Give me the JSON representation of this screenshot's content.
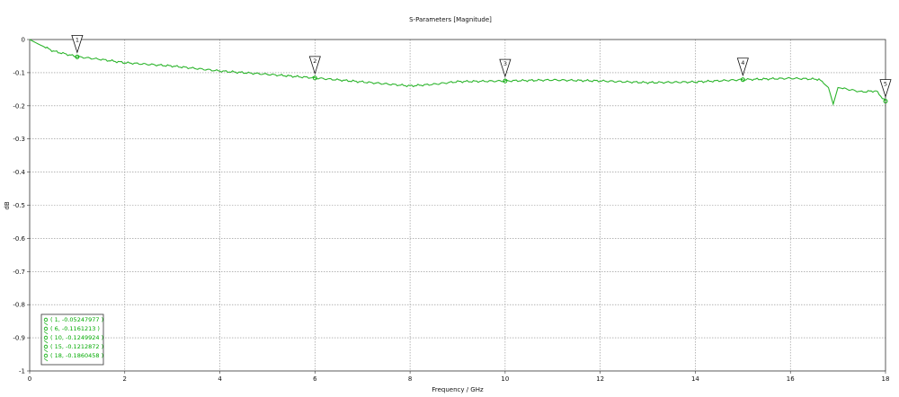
{
  "chart_data": {
    "type": "line",
    "title": "S-Parameters [Magnitude]",
    "xlabel": "Frequency / GHz",
    "ylabel": "dB",
    "xlim": [
      0,
      18
    ],
    "ylim": [
      -1,
      0
    ],
    "x_ticks": [
      0,
      2,
      4,
      6,
      8,
      10,
      12,
      14,
      16,
      18
    ],
    "y_ticks": [
      0,
      -0.1,
      -0.2,
      -0.3,
      -0.4,
      -0.5,
      -0.6,
      -0.7,
      -0.8,
      -0.9,
      -1
    ],
    "grid": true,
    "series": [
      {
        "color": "#2db52d",
        "x": [
          0,
          0.2,
          0.5,
          1,
          1.5,
          2,
          3,
          4,
          5,
          6,
          7,
          8,
          8.5,
          9,
          10,
          11,
          12,
          13,
          14,
          15,
          16,
          16.6,
          16.8,
          16.9,
          17.0,
          17.2,
          17.5,
          17.8,
          18
        ],
        "y": [
          0,
          -0.015,
          -0.035,
          -0.052,
          -0.06,
          -0.07,
          -0.08,
          -0.095,
          -0.105,
          -0.116,
          -0.128,
          -0.14,
          -0.135,
          -0.127,
          -0.125,
          -0.122,
          -0.125,
          -0.13,
          -0.128,
          -0.121,
          -0.117,
          -0.12,
          -0.145,
          -0.195,
          -0.145,
          -0.15,
          -0.158,
          -0.155,
          -0.186
        ]
      }
    ],
    "markers": [
      {
        "id": "1",
        "x": 1,
        "y": -0.05247977
      },
      {
        "id": "2",
        "x": 6,
        "y": -0.1161213
      },
      {
        "id": "3",
        "x": 10,
        "y": -0.1249924
      },
      {
        "id": "4",
        "x": 15,
        "y": -0.1212872
      },
      {
        "id": "5",
        "x": 18,
        "y": -0.1860458
      }
    ],
    "legend": {
      "placement": "bottom-left",
      "entries": [
        "( 1, -0.05247977 )",
        "( 6, -0.1161213 )",
        "( 10, -0.1249924 )",
        "( 15, -0.1212872 )",
        "( 18, -0.1860458 )"
      ]
    }
  }
}
